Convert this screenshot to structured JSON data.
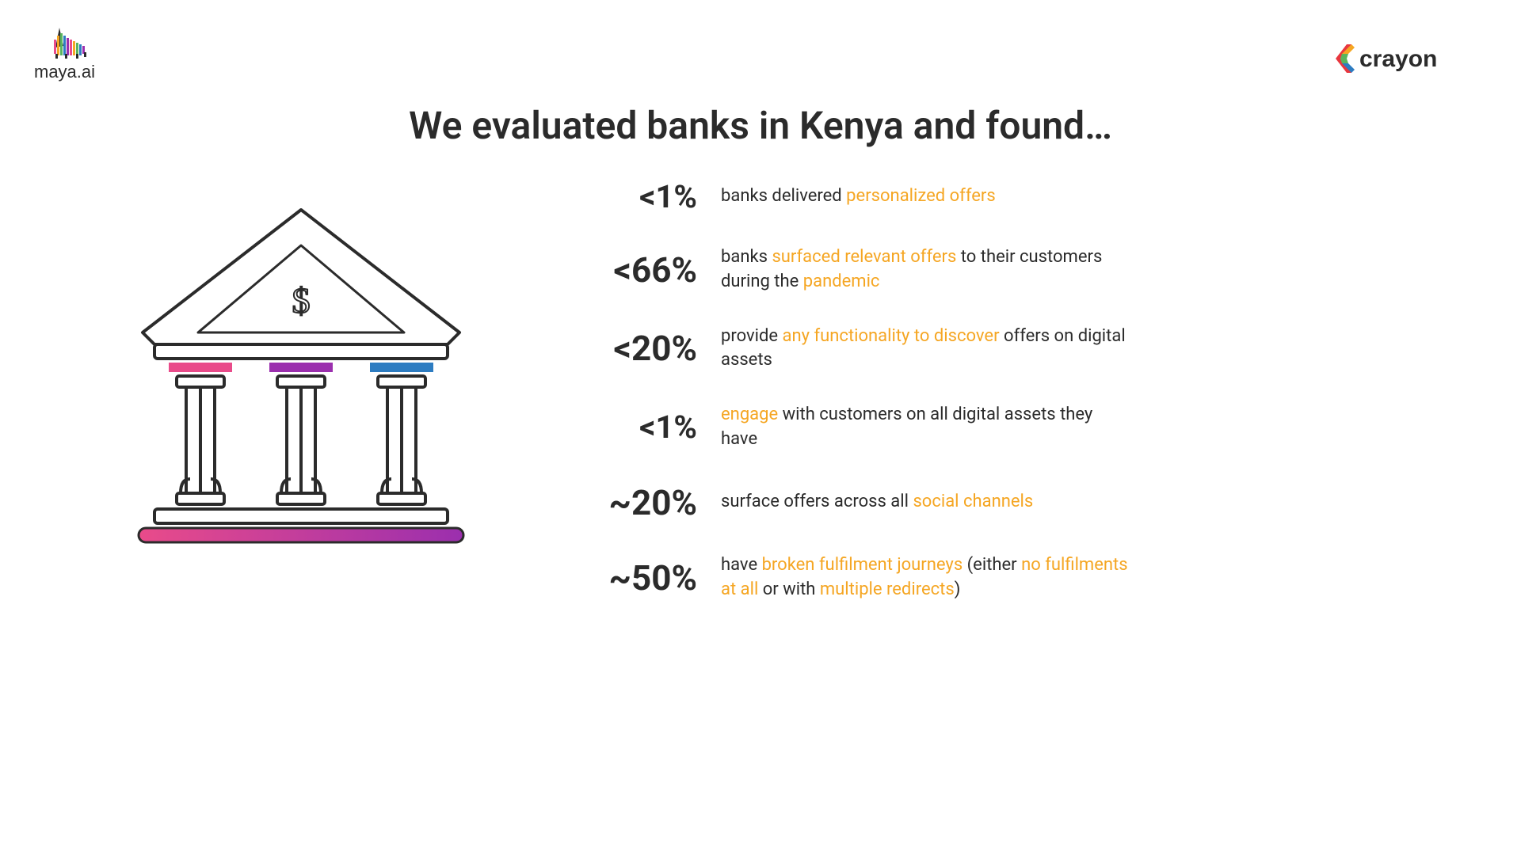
{
  "title": "We evaluated banks in Kenya and found…",
  "logos": {
    "left_text": "maya.ai",
    "right_text": "crayon"
  },
  "colors": {
    "text": "#2b2b2b",
    "highlight": "#f5a623",
    "lintel_pink": "#e94b8a",
    "lintel_purple": "#9b2fae",
    "lintel_blue": "#2d7cc1",
    "base_grad_start": "#e94b8a",
    "base_grad_end": "#9b2fae",
    "crayon_red": "#e8373e",
    "crayon_orange": "#f5a623",
    "crayon_green": "#5ab55e",
    "crayon_blue": "#2d7cc1"
  },
  "stats": [
    {
      "value": "<1%",
      "desc_html": "banks delivered <span class=\"hl\">personalized offers</span>"
    },
    {
      "value": "<66%",
      "desc_html": "banks <span class=\"hl\">surfaced relevant offers</span> to their customers during the <span class=\"hl\">pandemic</span>"
    },
    {
      "value": "<20%",
      "desc_html": "provide <span class=\"hl\">any functionality to discover</span> offers on digital assets"
    },
    {
      "value": "<1%",
      "desc_html": "<span class=\"hl\">engage</span> with customers on all digital assets they have"
    },
    {
      "value": "~20%",
      "desc_html": "surface offers across all <span class=\"hl\">social channels</span>"
    },
    {
      "value": "~50%",
      "desc_html": "have <span class=\"hl\">broken fulfilment journeys</span> (either <span class=\"hl\">no fulfilments at all</span> or with <span class=\"hl\">multiple redirects</span>)"
    }
  ]
}
